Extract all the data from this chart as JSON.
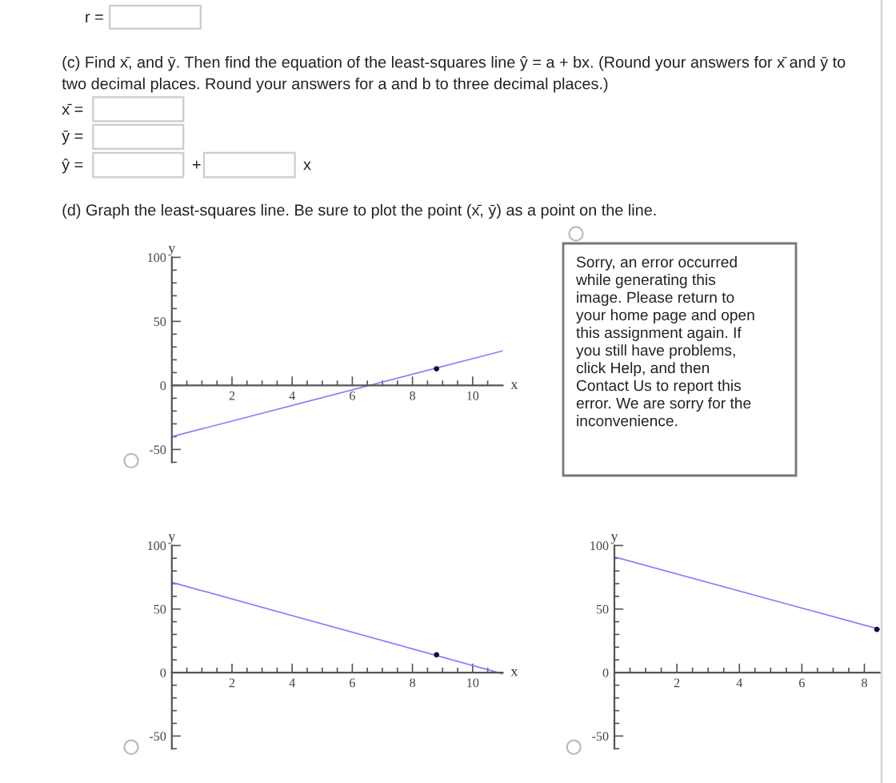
{
  "chart_data": [
    {
      "type": "other",
      "annotations": [
        "r =",
        "(c) Find x̄, and ȳ. Then find the equation of the least-squares line ŷ = a + bx. (Round your answers for x̄ and ȳ to two decimal places. Round your answers for a and b to three decimal places.)",
        "x̄ =",
        "ȳ =",
        "ŷ =",
        "+",
        "x",
        "(d) Graph the least-squares line. Be sure to plot the point (x̄, ȳ) as a point on the line."
      ]
    },
    {
      "type": "line",
      "xlabel": "x",
      "ylabel": "y",
      "xlim": [
        0,
        11
      ],
      "ylim": [
        -60,
        100
      ],
      "xticks": [
        {
          "value": 0.5,
          "label": null
        },
        {
          "value": 1,
          "label": null
        },
        {
          "value": 1.5,
          "label": null
        },
        2,
        {
          "value": 2.5,
          "label": null
        },
        {
          "value": 3,
          "label": null
        },
        {
          "value": 3.5,
          "label": null
        },
        4,
        {
          "value": 4.5,
          "label": null
        },
        {
          "value": 5,
          "label": null
        },
        {
          "value": 5.5,
          "label": null
        },
        6,
        {
          "value": 6.5,
          "label": null
        },
        {
          "value": 7,
          "label": null
        },
        {
          "value": 7.5,
          "label": null
        },
        8,
        {
          "value": 8.5,
          "label": null
        },
        {
          "value": 9,
          "label": null
        },
        {
          "value": 9.5,
          "label": null
        },
        10,
        {
          "value": 10.5,
          "label": null
        }
      ],
      "yticks": [
        {
          "value": -60,
          "label": null
        },
        -50,
        {
          "value": -40,
          "label": null
        },
        {
          "value": -30,
          "label": null
        },
        {
          "value": -20,
          "label": null
        },
        {
          "value": -10,
          "label": null
        },
        0,
        {
          "value": 10,
          "label": null
        },
        {
          "value": 20,
          "label": null
        },
        {
          "value": 30,
          "label": null
        },
        {
          "value": 40,
          "label": null
        },
        50,
        {
          "value": 60,
          "label": null
        },
        {
          "value": 70,
          "label": null
        },
        {
          "value": 80,
          "label": null
        },
        {
          "value": 90,
          "label": null
        },
        100
      ],
      "series": [
        {
          "type": "line",
          "x": [
            0,
            11
          ],
          "values": [
            -40,
            27
          ],
          "color": "#8080ff"
        },
        {
          "type": "scatter",
          "x": [
            8.8
          ],
          "values": [
            13
          ],
          "color": "#101040"
        }
      ]
    },
    {
      "type": "other",
      "annotations": [
        "Sorry, an error occurred while generating this image. Please return to your home page and open this assignment again. If you still have problems, click Help, and then Contact Us to report this error. We are sorry for the inconvenience."
      ]
    },
    {
      "type": "line",
      "xlabel": "x",
      "ylabel": "y",
      "xlim": [
        0,
        11
      ],
      "ylim": [
        -60,
        100
      ],
      "xticks": [
        {
          "value": 0.5,
          "label": null
        },
        {
          "value": 1,
          "label": null
        },
        {
          "value": 1.5,
          "label": null
        },
        2,
        {
          "value": 2.5,
          "label": null
        },
        {
          "value": 3,
          "label": null
        },
        {
          "value": 3.5,
          "label": null
        },
        4,
        {
          "value": 4.5,
          "label": null
        },
        {
          "value": 5,
          "label": null
        },
        {
          "value": 5.5,
          "label": null
        },
        6,
        {
          "value": 6.5,
          "label": null
        },
        {
          "value": 7,
          "label": null
        },
        {
          "value": 7.5,
          "label": null
        },
        8,
        {
          "value": 8.5,
          "label": null
        },
        {
          "value": 9,
          "label": null
        },
        {
          "value": 9.5,
          "label": null
        },
        10,
        {
          "value": 10.5,
          "label": null
        }
      ],
      "yticks": [
        {
          "value": -60,
          "label": null
        },
        -50,
        {
          "value": -40,
          "label": null
        },
        {
          "value": -30,
          "label": null
        },
        {
          "value": -20,
          "label": null
        },
        {
          "value": -10,
          "label": null
        },
        0,
        {
          "value": 10,
          "label": null
        },
        {
          "value": 20,
          "label": null
        },
        {
          "value": 30,
          "label": null
        },
        {
          "value": 40,
          "label": null
        },
        50,
        {
          "value": 60,
          "label": null
        },
        {
          "value": 70,
          "label": null
        },
        {
          "value": 80,
          "label": null
        },
        {
          "value": 90,
          "label": null
        },
        100
      ],
      "series": [
        {
          "type": "line",
          "x": [
            0,
            11
          ],
          "values": [
            71,
            -1
          ],
          "color": "#8080ff"
        },
        {
          "type": "scatter",
          "x": [
            8.8
          ],
          "values": [
            14
          ],
          "color": "#101040"
        }
      ]
    },
    {
      "type": "line",
      "ylabel": "y",
      "xlim": [
        0,
        8.5
      ],
      "ylim": [
        -60,
        100
      ],
      "xticks": [
        {
          "value": 0.5,
          "label": null
        },
        {
          "value": 1,
          "label": null
        },
        {
          "value": 1.5,
          "label": null
        },
        2,
        {
          "value": 2.5,
          "label": null
        },
        {
          "value": 3,
          "label": null
        },
        {
          "value": 3.5,
          "label": null
        },
        4,
        {
          "value": 4.5,
          "label": null
        },
        {
          "value": 5,
          "label": null
        },
        {
          "value": 5.5,
          "label": null
        },
        6,
        {
          "value": 6.5,
          "label": null
        },
        {
          "value": 7,
          "label": null
        },
        {
          "value": 7.5,
          "label": null
        },
        8
      ],
      "yticks": [
        {
          "value": -60,
          "label": null
        },
        -50,
        {
          "value": -40,
          "label": null
        },
        {
          "value": -30,
          "label": null
        },
        {
          "value": -20,
          "label": null
        },
        {
          "value": -10,
          "label": null
        },
        0,
        {
          "value": 10,
          "label": null
        },
        {
          "value": 20,
          "label": null
        },
        {
          "value": 30,
          "label": null
        },
        {
          "value": 40,
          "label": null
        },
        50,
        {
          "value": 60,
          "label": null
        },
        {
          "value": 70,
          "label": null
        },
        {
          "value": 80,
          "label": null
        },
        {
          "value": 90,
          "label": null
        },
        100
      ],
      "series": [
        {
          "type": "line",
          "x": [
            0,
            8.5
          ],
          "values": [
            91,
            34
          ],
          "color": "#8080ff"
        },
        {
          "type": "scatter",
          "x": [
            8.4
          ],
          "values": [
            34
          ],
          "color": "#101040"
        }
      ]
    }
  ]
}
